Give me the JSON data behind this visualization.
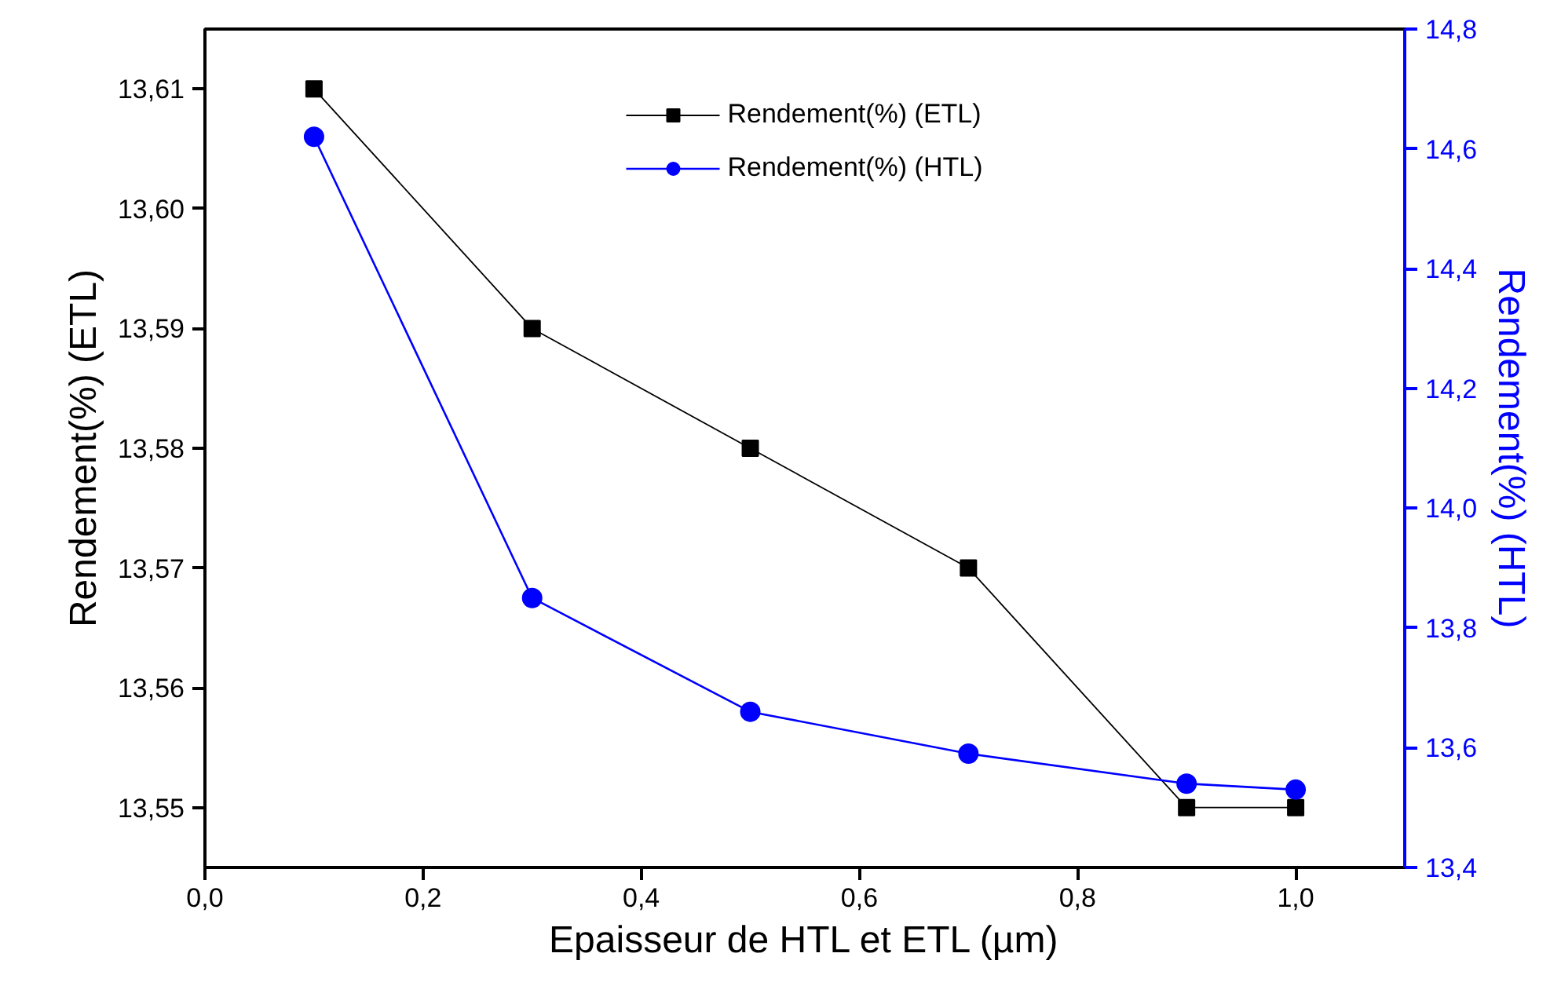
{
  "chart_data": {
    "type": "line",
    "xlabel": "Epaisseur de HTL et ETL (µm)",
    "ylabel": "Rendement(%) (ETL)",
    "y2label": "Rendement(%) (HTL)",
    "x": [
      0.1,
      0.3,
      0.5,
      0.7,
      0.9,
      1.0
    ],
    "series": [
      {
        "name": "Rendement(%) (ETL)",
        "color": "#000000",
        "marker": "square",
        "values": [
          13.61,
          13.59,
          13.58,
          13.57,
          13.55,
          13.55
        ]
      },
      {
        "name": "Rendement(%) (HTL)",
        "color": "#0000ff",
        "marker": "circle",
        "axis": "y2",
        "values": [
          14.62,
          13.85,
          13.66,
          13.59,
          13.54,
          13.53
        ]
      }
    ],
    "xlim": [
      0,
      1.1
    ],
    "xticks": [
      {
        "value": 0,
        "label": "0,0"
      },
      {
        "value": 0.2,
        "label": "0,2"
      },
      {
        "value": 0.4,
        "label": "0,4"
      },
      {
        "value": 0.6,
        "label": "0,6"
      },
      {
        "value": 0.8,
        "label": "0,8"
      },
      {
        "value": 1.0,
        "label": "1,0"
      }
    ],
    "ylim": [
      13.545,
      13.615
    ],
    "yticks": [
      {
        "value": 13.55,
        "label": "13,55"
      },
      {
        "value": 13.56,
        "label": "13,56"
      },
      {
        "value": 13.57,
        "label": "13,57"
      },
      {
        "value": 13.58,
        "label": "13,58"
      },
      {
        "value": 13.59,
        "label": "13,59"
      },
      {
        "value": 13.6,
        "label": "13,60"
      },
      {
        "value": 13.61,
        "label": "13,61"
      }
    ],
    "y2lim": [
      13.4,
      14.8
    ],
    "y2ticks": [
      {
        "value": 13.4,
        "label": "13,4"
      },
      {
        "value": 13.6,
        "label": "13,6"
      },
      {
        "value": 13.8,
        "label": "13,8"
      },
      {
        "value": 14.0,
        "label": "14,0"
      },
      {
        "value": 14.2,
        "label": "14,2"
      },
      {
        "value": 14.4,
        "label": "14,4"
      },
      {
        "value": 14.6,
        "label": "14,6"
      },
      {
        "value": 14.8,
        "label": "14,8"
      }
    ],
    "grid": false,
    "legend": "top",
    "line_style": "solid"
  }
}
